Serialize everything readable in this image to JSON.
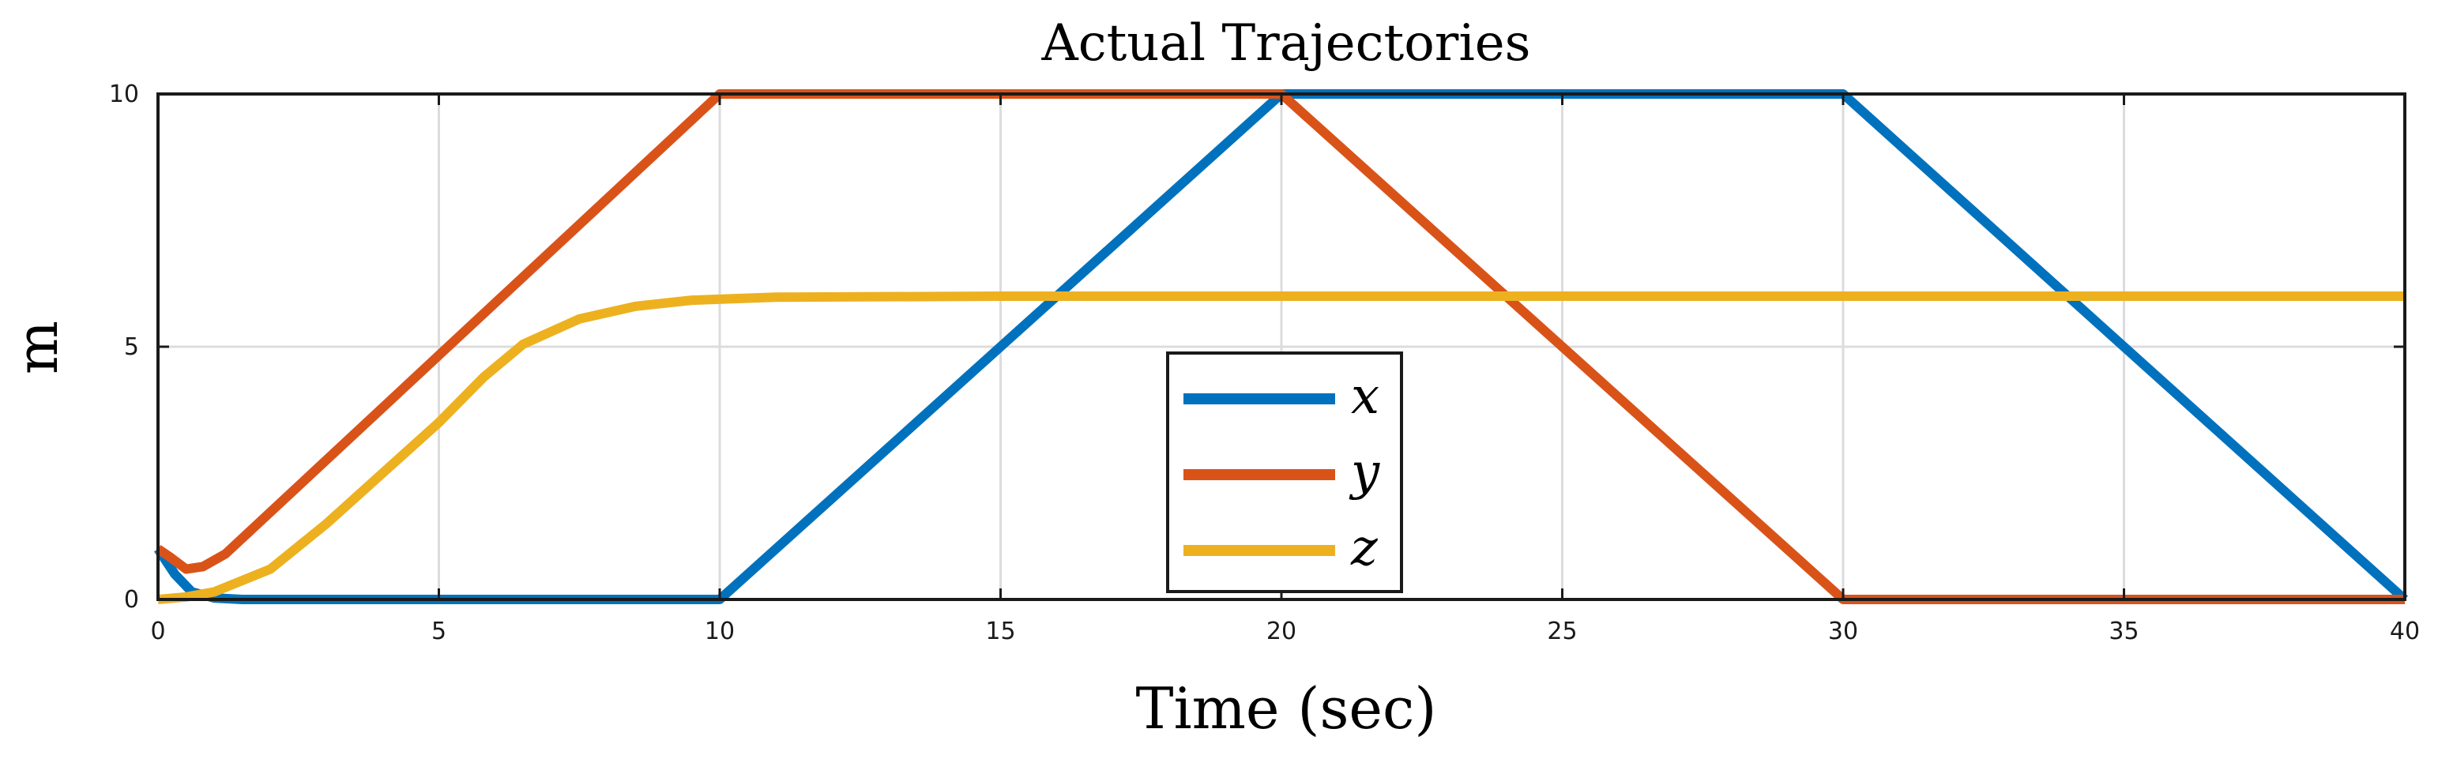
{
  "chart_data": {
    "type": "line",
    "title": "Actual Trajectories",
    "xlabel": "Time (sec)",
    "ylabel": "m",
    "xlim": [
      0,
      40
    ],
    "ylim": [
      0,
      10
    ],
    "xticks": [
      0,
      5,
      10,
      15,
      20,
      25,
      30,
      35,
      40
    ],
    "yticks": [
      0,
      5,
      10
    ],
    "grid": true,
    "legend_position": "center",
    "series": [
      {
        "name": "x",
        "color": "#0072BD",
        "points": [
          [
            0,
            1.0
          ],
          [
            0.3,
            0.5
          ],
          [
            0.6,
            0.15
          ],
          [
            1.0,
            0.03
          ],
          [
            1.5,
            0
          ],
          [
            10,
            0
          ],
          [
            20,
            10
          ],
          [
            30,
            10
          ],
          [
            40,
            0
          ]
        ]
      },
      {
        "name": "y",
        "color": "#D95319",
        "points": [
          [
            0,
            1.0
          ],
          [
            0.2,
            0.85
          ],
          [
            0.5,
            0.6
          ],
          [
            0.8,
            0.65
          ],
          [
            1.2,
            0.9
          ],
          [
            10,
            10
          ],
          [
            20,
            10
          ],
          [
            30,
            0
          ],
          [
            40,
            0
          ]
        ]
      },
      {
        "name": "z",
        "color": "#EDB120",
        "points": [
          [
            0,
            0
          ],
          [
            0.5,
            0.05
          ],
          [
            1,
            0.15
          ],
          [
            2,
            0.6
          ],
          [
            3,
            1.5
          ],
          [
            4,
            2.5
          ],
          [
            5,
            3.5
          ],
          [
            5.8,
            4.4
          ],
          [
            6.5,
            5.05
          ],
          [
            7.5,
            5.55
          ],
          [
            8.5,
            5.8
          ],
          [
            9.5,
            5.92
          ],
          [
            11,
            5.98
          ],
          [
            15,
            6.0
          ],
          [
            40,
            6.0
          ]
        ]
      }
    ]
  }
}
